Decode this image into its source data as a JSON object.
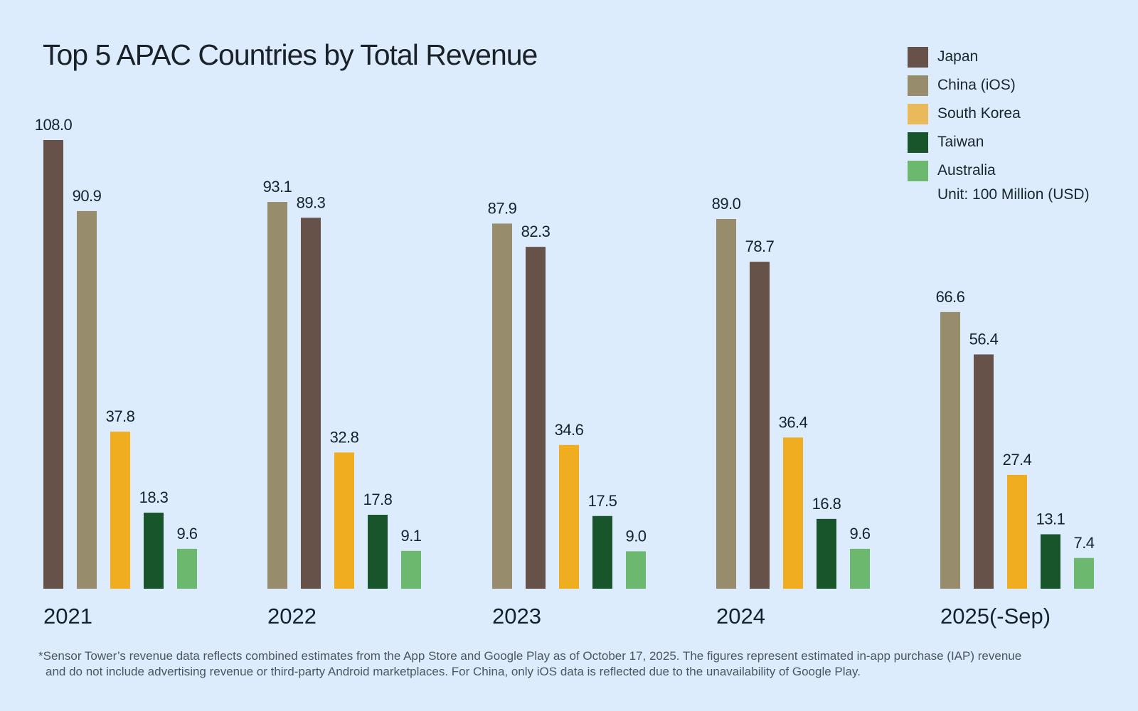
{
  "chart_data": {
    "type": "bar",
    "title": "Top 5 APAC Countries by Total Revenue",
    "xlabel": "",
    "ylabel": "",
    "unit": "Unit: 100 Million (USD)",
    "ylim": [
      0,
      108
    ],
    "grid": false,
    "legend_position": "top-right",
    "categories": [
      "2021",
      "2022",
      "2023",
      "2024",
      "2025(-Sep)"
    ],
    "series": [
      {
        "name": "Japan",
        "color": "#67524a",
        "values": [
          108.0,
          89.3,
          82.3,
          78.7,
          56.4
        ]
      },
      {
        "name": "China (iOS)",
        "color": "#978d6c",
        "values": [
          90.9,
          93.1,
          87.9,
          89.0,
          66.6
        ]
      },
      {
        "name": "South Korea",
        "color": "#f0ad1f",
        "values": [
          37.8,
          32.8,
          34.6,
          36.4,
          27.4
        ]
      },
      {
        "name": "Taiwan",
        "color": "#18552a",
        "values": [
          18.3,
          17.8,
          17.5,
          16.8,
          13.1
        ]
      },
      {
        "name": "Australia",
        "color": "#6db86f",
        "values": [
          9.6,
          9.1,
          9.0,
          9.6,
          7.4
        ]
      }
    ],
    "bar_order_per_category": [
      [
        "Japan",
        "China (iOS)",
        "South Korea",
        "Taiwan",
        "Australia"
      ],
      [
        "China (iOS)",
        "Japan",
        "South Korea",
        "Taiwan",
        "Australia"
      ],
      [
        "China (iOS)",
        "Japan",
        "South Korea",
        "Taiwan",
        "Australia"
      ],
      [
        "China (iOS)",
        "Japan",
        "South Korea",
        "Taiwan",
        "Australia"
      ],
      [
        "China (iOS)",
        "Japan",
        "South Korea",
        "Taiwan",
        "Australia"
      ]
    ]
  },
  "legend": {
    "items": [
      {
        "label": "Japan",
        "color": "#67524a"
      },
      {
        "label": "China (iOS)",
        "color": "#978d6c"
      },
      {
        "label": "South Korea",
        "color": "#e9b95a"
      },
      {
        "label": "Taiwan",
        "color": "#18552a"
      },
      {
        "label": "Australia",
        "color": "#6db86f"
      }
    ],
    "unit": "Unit: 100 Million (USD)"
  },
  "footnote": {
    "line1": "*Sensor Tower’s revenue data reflects combined estimates from the App Store and Google Play as of October 17, 2025. The figures represent estimated in-app purchase (IAP) revenue",
    "line2": "and do not include advertising revenue or third-party Android marketplaces. For China, only iOS data is reflected due to the unavailability of Google Play."
  }
}
